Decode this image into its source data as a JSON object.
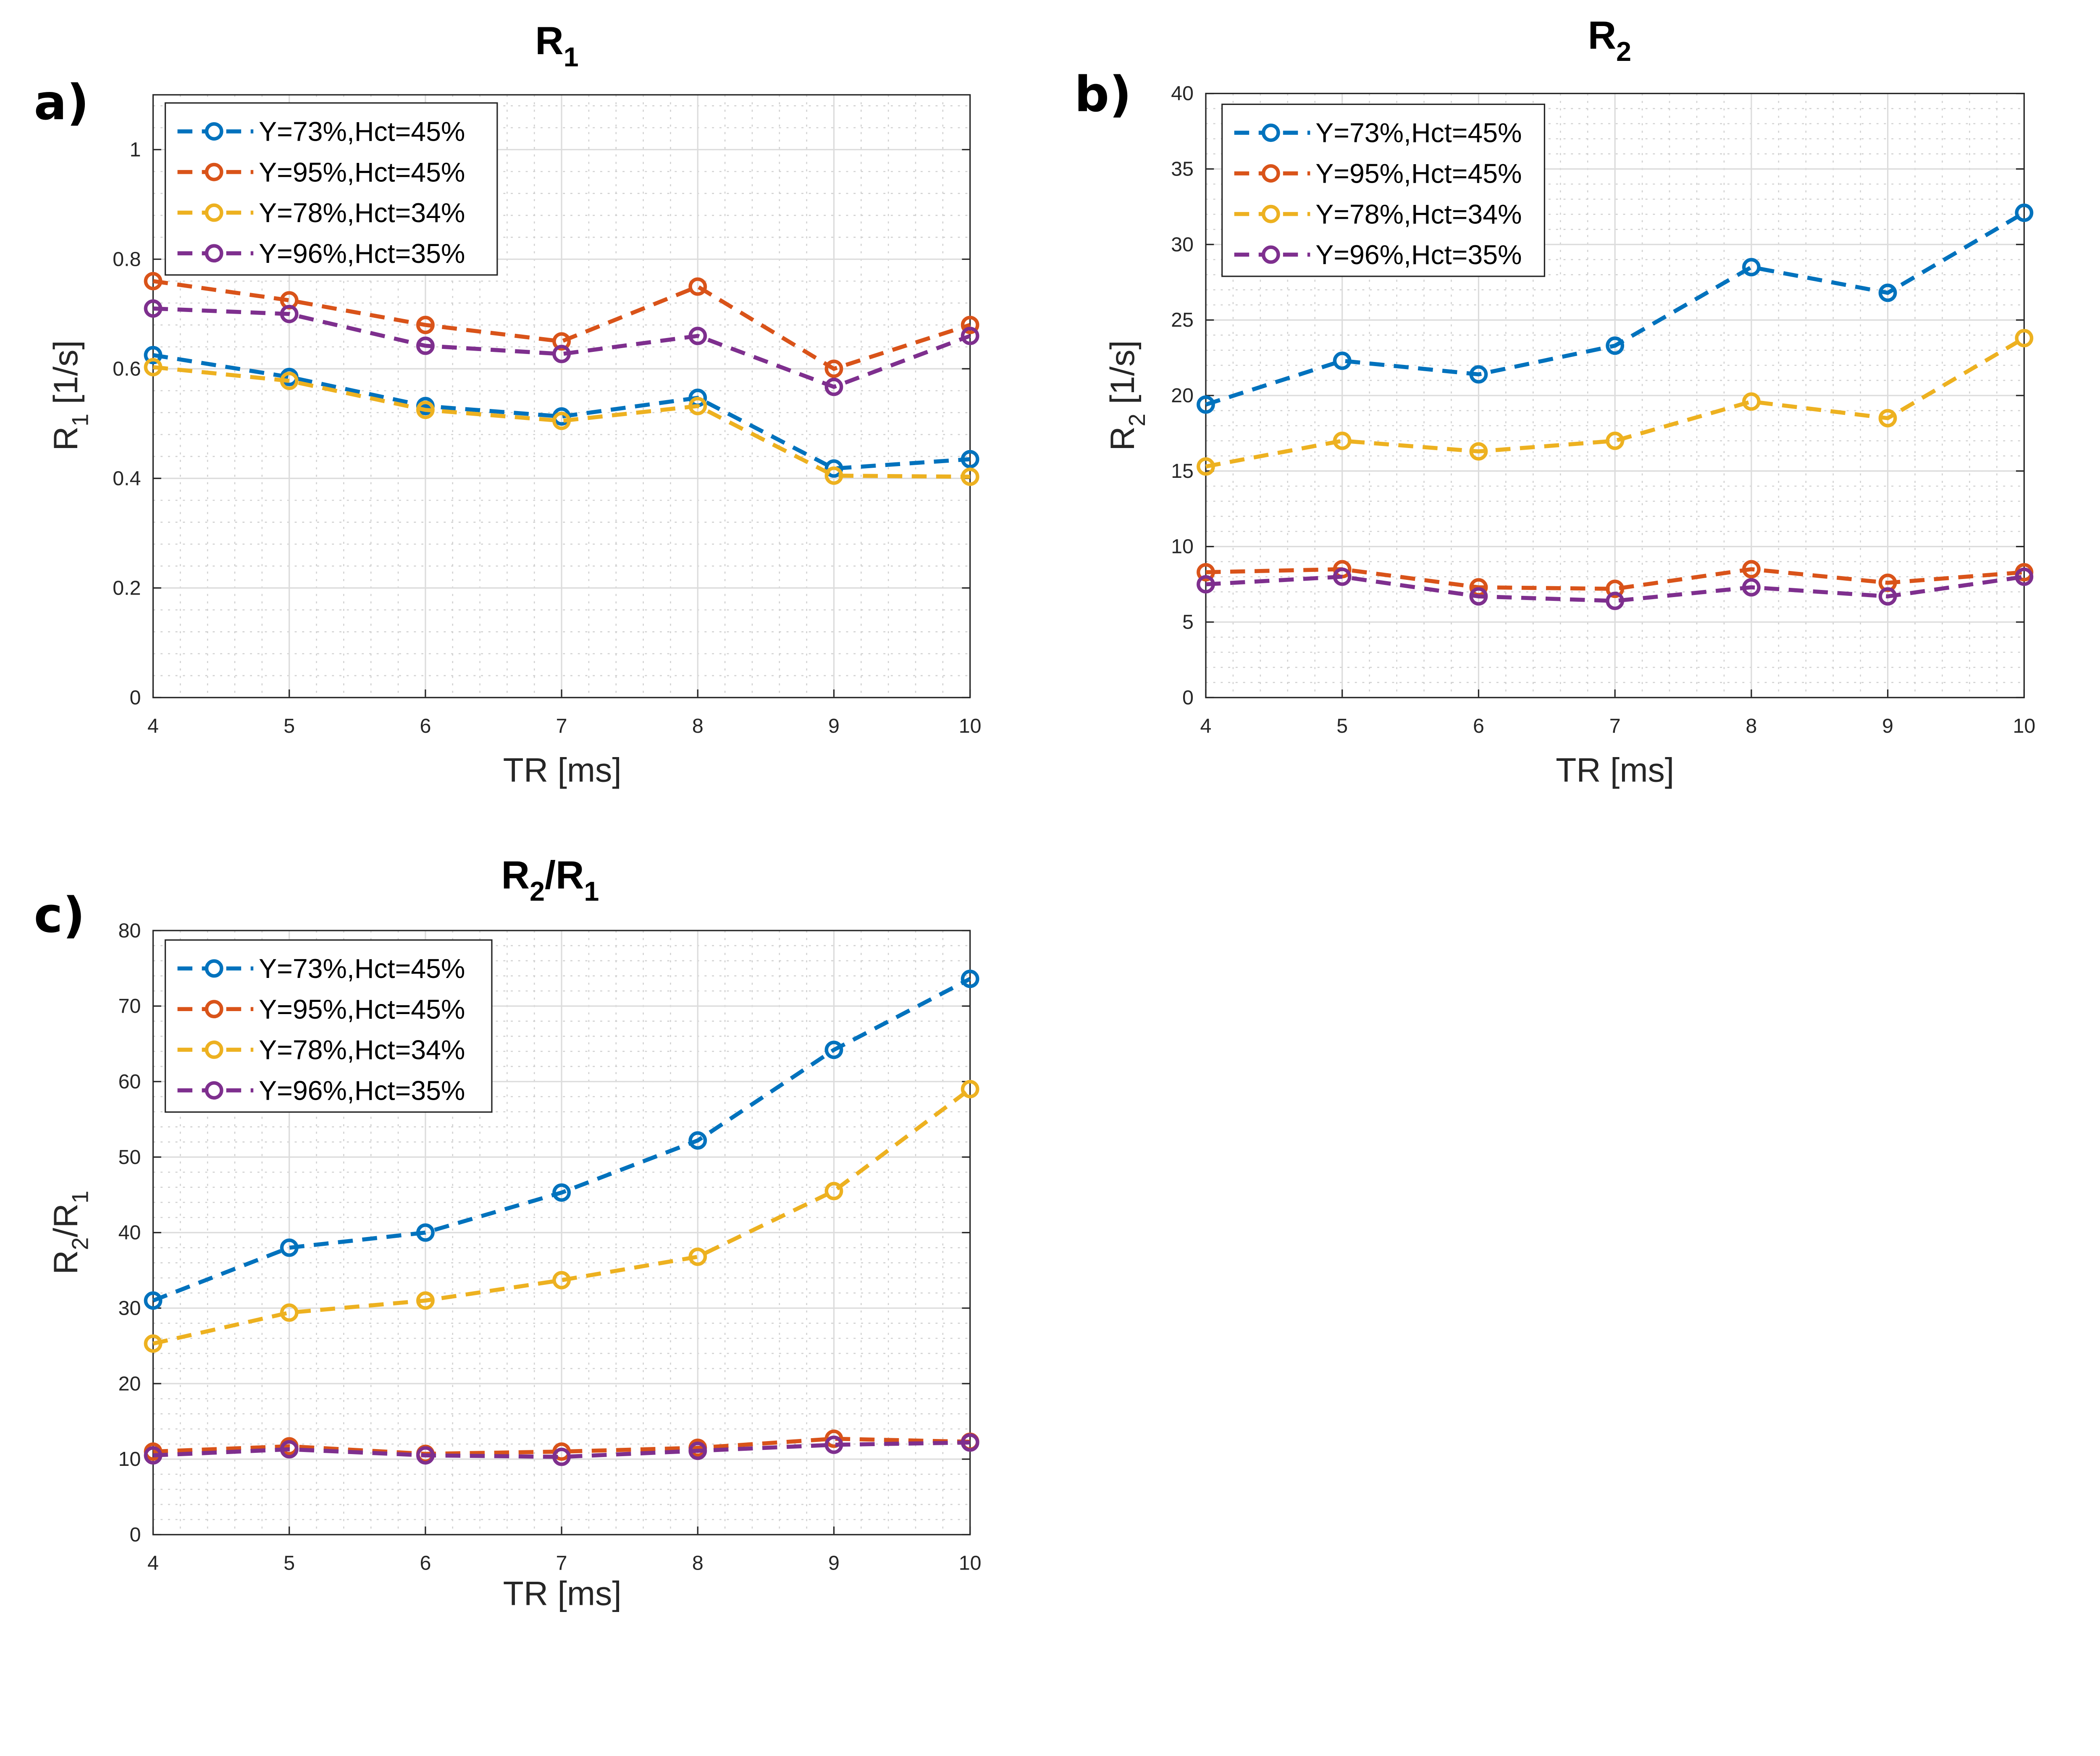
{
  "chart_data": [
    {
      "type": "line",
      "panel_label": "a)",
      "title": {
        "main": "R",
        "sub": "1"
      },
      "xlabel": "TR [ms]",
      "ylabel": {
        "main": "R",
        "sub": "1",
        "rest": " [1/s]"
      },
      "x": [
        4,
        5,
        6,
        7,
        8,
        9,
        10
      ],
      "xlim": [
        4,
        10
      ],
      "ylim": [
        0,
        1.1
      ],
      "xticks": [
        "4",
        "5",
        "6",
        "7",
        "8",
        "9",
        "10"
      ],
      "yticks": [
        "0",
        "0.2",
        "0.4",
        "0.6",
        "0.8",
        "1"
      ],
      "grid": true,
      "minor_grid": true,
      "legend_placement": "top-left",
      "series": [
        {
          "name": "Y=73%,Hct=45%",
          "color": "#0072BD",
          "values": [
            0.625,
            0.585,
            0.532,
            0.513,
            0.547,
            0.418,
            0.435
          ]
        },
        {
          "name": "Y=95%,Hct=45%",
          "color": "#D95319",
          "values": [
            0.76,
            0.725,
            0.68,
            0.65,
            0.75,
            0.6,
            0.68
          ]
        },
        {
          "name": "Y=78%,Hct=34%",
          "color": "#EDB120",
          "values": [
            0.603,
            0.578,
            0.525,
            0.505,
            0.532,
            0.405,
            0.403
          ]
        },
        {
          "name": "Y=96%,Hct=35%",
          "color": "#7E2F8E",
          "values": [
            0.71,
            0.7,
            0.642,
            0.627,
            0.66,
            0.567,
            0.66
          ]
        }
      ]
    },
    {
      "type": "line",
      "panel_label": "b)",
      "title": {
        "main": "R",
        "sub": "2"
      },
      "xlabel": "TR [ms]",
      "ylabel": {
        "main": "R",
        "sub": "2",
        "rest": " [1/s]"
      },
      "x": [
        4,
        5,
        6,
        7,
        8,
        9,
        10
      ],
      "xlim": [
        4,
        10
      ],
      "ylim": [
        0,
        40
      ],
      "xticks": [
        "4",
        "5",
        "6",
        "7",
        "8",
        "9",
        "10"
      ],
      "yticks": [
        "0",
        "5",
        "10",
        "15",
        "20",
        "25",
        "30",
        "35",
        "40"
      ],
      "grid": true,
      "minor_grid": true,
      "legend_placement": "top-left",
      "series": [
        {
          "name": "Y=73%,Hct=45%",
          "color": "#0072BD",
          "values": [
            19.4,
            22.3,
            21.4,
            23.3,
            28.5,
            26.8,
            32.1
          ]
        },
        {
          "name": "Y=95%,Hct=45%",
          "color": "#D95319",
          "values": [
            8.3,
            8.5,
            7.3,
            7.2,
            8.5,
            7.6,
            8.3
          ]
        },
        {
          "name": "Y=78%,Hct=34%",
          "color": "#EDB120",
          "values": [
            15.3,
            17.0,
            16.3,
            17.0,
            19.6,
            18.5,
            23.8
          ]
        },
        {
          "name": "Y=96%,Hct=35%",
          "color": "#7E2F8E",
          "values": [
            7.5,
            8.0,
            6.7,
            6.4,
            7.3,
            6.7,
            8.0
          ]
        }
      ]
    },
    {
      "type": "line",
      "panel_label": "c)",
      "title": {
        "main": "R",
        "sub": "2",
        "mid": "/R",
        "sub2": "1"
      },
      "xlabel": "TR [ms]",
      "ylabel": {
        "main": "R",
        "sub": "2",
        "rest": "/R",
        "sub2": "1"
      },
      "x": [
        4,
        5,
        6,
        7,
        8,
        9,
        10
      ],
      "xlim": [
        4,
        10
      ],
      "ylim": [
        0,
        80
      ],
      "xticks": [
        "4",
        "5",
        "6",
        "7",
        "8",
        "9",
        "10"
      ],
      "yticks": [
        "0",
        "10",
        "20",
        "30",
        "40",
        "50",
        "60",
        "70",
        "80"
      ],
      "grid": true,
      "minor_grid": true,
      "legend_placement": "top-left",
      "series": [
        {
          "name": "Y=73%,Hct=45%",
          "color": "#0072BD",
          "values": [
            31,
            38,
            40,
            45.3,
            52.2,
            64.2,
            73.6
          ]
        },
        {
          "name": "Y=95%,Hct=45%",
          "color": "#D95319",
          "values": [
            11,
            11.7,
            10.7,
            11,
            11.5,
            12.7,
            12.3
          ]
        },
        {
          "name": "Y=78%,Hct=34%",
          "color": "#EDB120",
          "values": [
            25.3,
            29.4,
            31,
            33.7,
            36.8,
            45.5,
            59
          ]
        },
        {
          "name": "Y=96%,Hct=35%",
          "color": "#7E2F8E",
          "values": [
            10.5,
            11.3,
            10.5,
            10.3,
            11.1,
            11.9,
            12.2
          ]
        }
      ]
    }
  ]
}
